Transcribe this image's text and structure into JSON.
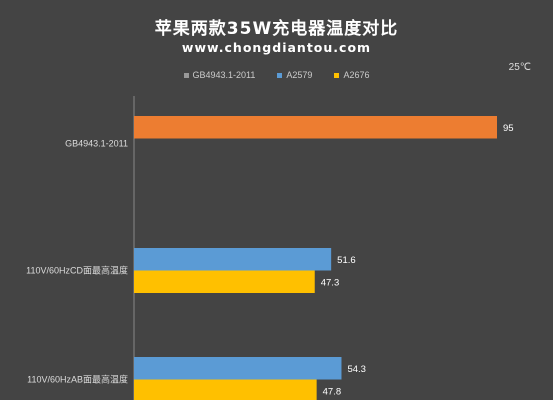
{
  "chart_data": {
    "type": "bar",
    "orientation": "horizontal",
    "title": "苹果两款35W充电器温度对比",
    "subtitle": "www.chongdiantou.com",
    "unit": "25℃",
    "legend_placement": "top",
    "xlim": [
      0,
      100
    ],
    "categories": [
      "GB4943.1-2011",
      "110V/60HzCD面最高温度",
      "110V/60HzAB面最高温度"
    ],
    "series": [
      {
        "name": "GB4943.1-2011",
        "color": "#ED7D31",
        "values": [
          95,
          null,
          null
        ]
      },
      {
        "name": "A2579",
        "color": "#5B9BD5",
        "values": [
          null,
          51.6,
          54.3
        ]
      },
      {
        "name": "A2676",
        "color": "#FFC000",
        "values": [
          null,
          47.3,
          47.8
        ]
      }
    ],
    "value_labels": [
      [
        "95"
      ],
      [
        "51.6",
        "47.3"
      ],
      [
        "54.3",
        "47.8"
      ]
    ]
  }
}
